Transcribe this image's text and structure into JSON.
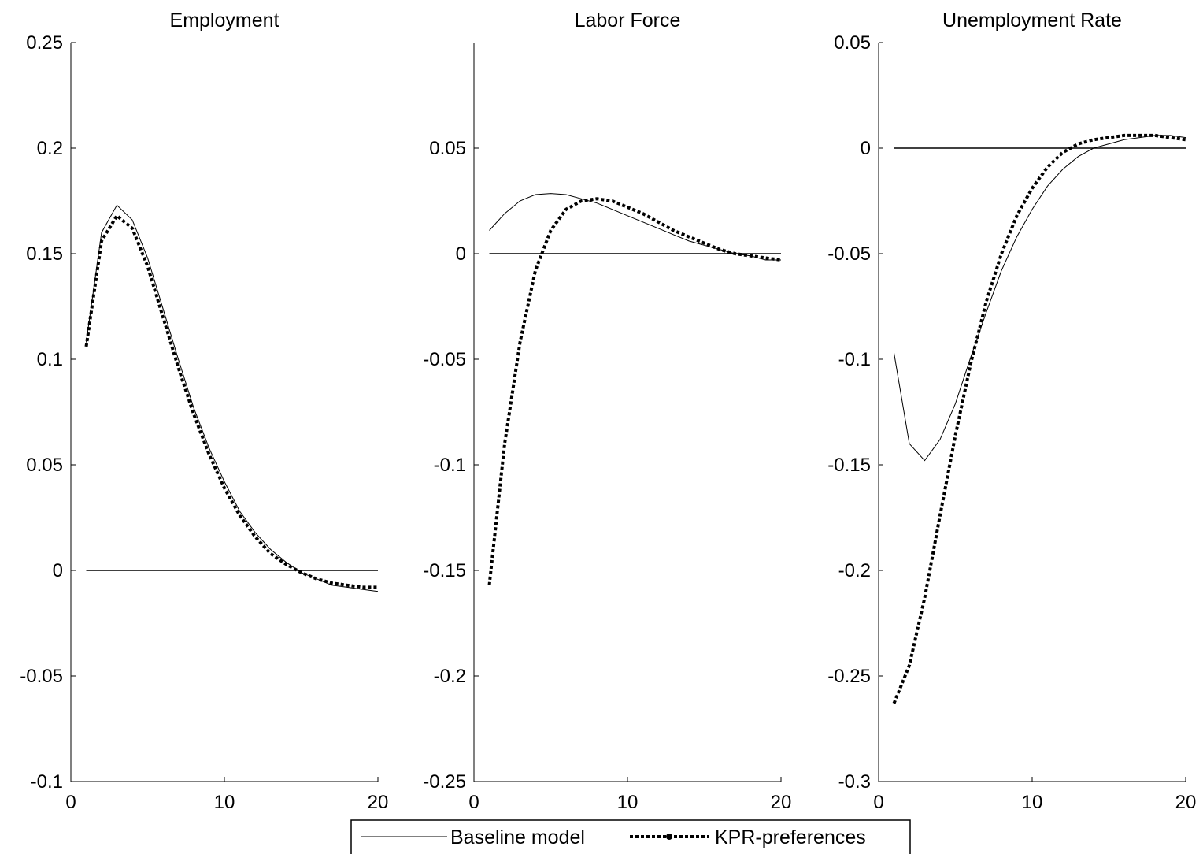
{
  "chart_data": [
    {
      "type": "line",
      "title": "Employment",
      "x": [
        1,
        2,
        3,
        4,
        5,
        6,
        7,
        8,
        9,
        10,
        11,
        12,
        13,
        14,
        15,
        16,
        17,
        18,
        19,
        20
      ],
      "xlim": [
        0,
        20
      ],
      "xticks": [
        0,
        10,
        20
      ],
      "ylim": [
        -0.1,
        0.25
      ],
      "yticks": [
        -0.1,
        -0.05,
        0,
        0.05,
        0.1,
        0.15,
        0.2,
        0.25
      ],
      "ytick_labels": [
        "-0.1",
        "-0.05",
        "0",
        "0.05",
        "0.1",
        "0.15",
        "0.2",
        "0.25"
      ],
      "xtick_labels": [
        "0",
        "10",
        "20"
      ],
      "series": [
        {
          "name": "Baseline model",
          "style": "solid",
          "values": [
            0.108,
            0.16,
            0.173,
            0.166,
            0.148,
            0.124,
            0.1,
            0.077,
            0.058,
            0.042,
            0.028,
            0.018,
            0.01,
            0.004,
            -0.001,
            -0.004,
            -0.007,
            -0.008,
            -0.009,
            -0.01
          ]
        },
        {
          "name": "KPR-preferences",
          "style": "dotted",
          "values": [
            0.106,
            0.156,
            0.168,
            0.162,
            0.144,
            0.12,
            0.096,
            0.074,
            0.055,
            0.039,
            0.026,
            0.016,
            0.008,
            0.003,
            -0.001,
            -0.004,
            -0.006,
            -0.007,
            -0.008,
            -0.008
          ]
        },
        {
          "name": "zero",
          "style": "reference",
          "values": [
            0,
            0,
            0,
            0,
            0,
            0,
            0,
            0,
            0,
            0,
            0,
            0,
            0,
            0,
            0,
            0,
            0,
            0,
            0,
            0
          ]
        }
      ]
    },
    {
      "type": "line",
      "title": "Labor Force",
      "x": [
        1,
        2,
        3,
        4,
        5,
        6,
        7,
        8,
        9,
        10,
        11,
        12,
        13,
        14,
        15,
        16,
        17,
        18,
        19,
        20
      ],
      "xlim": [
        0,
        20
      ],
      "xticks": [
        0,
        10,
        20
      ],
      "ylim": [
        -0.25,
        0.1
      ],
      "yticks": [
        -0.25,
        -0.2,
        -0.15,
        -0.1,
        -0.05,
        0,
        0.05
      ],
      "ytick_labels": [
        "-0.25",
        "-0.2",
        "-0.15",
        "-0.1",
        "-0.05",
        "0",
        "0.05"
      ],
      "xtick_labels": [
        "0",
        "10",
        "20"
      ],
      "series": [
        {
          "name": "Baseline model",
          "style": "solid",
          "values": [
            0.011,
            0.019,
            0.025,
            0.028,
            0.0285,
            0.028,
            0.026,
            0.024,
            0.021,
            0.018,
            0.015,
            0.012,
            0.009,
            0.006,
            0.004,
            0.002,
            0.0,
            -0.001,
            -0.003,
            -0.003
          ]
        },
        {
          "name": "KPR-preferences",
          "style": "dotted",
          "values": [
            -0.157,
            -0.09,
            -0.042,
            -0.008,
            0.011,
            0.021,
            0.025,
            0.026,
            0.025,
            0.022,
            0.019,
            0.015,
            0.011,
            0.008,
            0.005,
            0.002,
            0.0,
            -0.001,
            -0.002,
            -0.003
          ]
        },
        {
          "name": "zero",
          "style": "reference",
          "values": [
            0,
            0,
            0,
            0,
            0,
            0,
            0,
            0,
            0,
            0,
            0,
            0,
            0,
            0,
            0,
            0,
            0,
            0,
            0,
            0
          ]
        }
      ]
    },
    {
      "type": "line",
      "title": "Unemployment Rate",
      "x": [
        1,
        2,
        3,
        4,
        5,
        6,
        7,
        8,
        9,
        10,
        11,
        12,
        13,
        14,
        15,
        16,
        17,
        18,
        19,
        20
      ],
      "xlim": [
        0,
        20
      ],
      "xticks": [
        0,
        10,
        20
      ],
      "ylim": [
        -0.3,
        0.05
      ],
      "yticks": [
        -0.3,
        -0.25,
        -0.2,
        -0.15,
        -0.1,
        -0.05,
        0,
        0.05
      ],
      "ytick_labels": [
        "-0.3",
        "-0.25",
        "-0.2",
        "-0.15",
        "-0.1",
        "-0.05",
        "0",
        "0.05"
      ],
      "xtick_labels": [
        "0",
        "10",
        "20"
      ],
      "series": [
        {
          "name": "Baseline model",
          "style": "solid",
          "values": [
            -0.097,
            -0.14,
            -0.148,
            -0.138,
            -0.121,
            -0.099,
            -0.078,
            -0.058,
            -0.042,
            -0.029,
            -0.018,
            -0.01,
            -0.004,
            0.0,
            0.002,
            0.004,
            0.005,
            0.006,
            0.006,
            0.005
          ]
        },
        {
          "name": "KPR-preferences",
          "style": "dotted",
          "values": [
            -0.263,
            -0.245,
            -0.213,
            -0.174,
            -0.136,
            -0.102,
            -0.073,
            -0.05,
            -0.032,
            -0.019,
            -0.009,
            -0.002,
            0.002,
            0.004,
            0.005,
            0.006,
            0.006,
            0.006,
            0.005,
            0.004
          ]
        },
        {
          "name": "zero",
          "style": "reference",
          "values": [
            0,
            0,
            0,
            0,
            0,
            0,
            0,
            0,
            0,
            0,
            0,
            0,
            0,
            0,
            0,
            0,
            0,
            0,
            0,
            0
          ]
        }
      ]
    }
  ],
  "legend": {
    "placement": "bottom-center",
    "entries": [
      {
        "label": "Baseline model",
        "style": "solid"
      },
      {
        "label": "KPR-preferences",
        "style": "dotted"
      }
    ]
  },
  "colors": {
    "line": "#000000",
    "background": "#ffffff"
  }
}
